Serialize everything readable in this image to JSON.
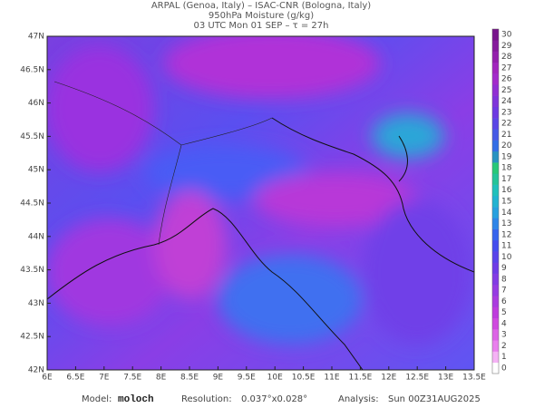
{
  "header": {
    "line1": "ARPAL (Genoa, Italy)  –  ISAC-CNR (Bologna, Italy)",
    "line2": "950hPa Moisture (g/kg)",
    "line3": "03 UTC Mon 01 SEP  –  τ = 27h"
  },
  "map": {
    "lat_labels": [
      "47N",
      "46.5N",
      "46N",
      "45.5N",
      "45N",
      "44.5N",
      "44N",
      "43.5N",
      "43N",
      "42.5N",
      "42N"
    ],
    "lon_labels": [
      "6E",
      "6.5E",
      "7E",
      "7.5E",
      "8E",
      "8.5E",
      "9E",
      "9.5E",
      "10E",
      "10.5E",
      "11E",
      "11.5E",
      "12E",
      "12.5E",
      "13E",
      "13.5E"
    ]
  },
  "colorbar": {
    "labels": [
      0,
      1,
      2,
      3,
      4,
      5,
      6,
      7,
      8,
      9,
      10,
      11,
      12,
      13,
      14,
      15,
      16,
      17,
      18,
      19,
      20,
      21,
      22,
      23,
      24,
      25,
      26,
      27,
      28,
      29,
      30
    ]
  },
  "footer": {
    "model_label": "Model:",
    "model": "moloch",
    "resolution_label": "Resolution:",
    "resolution": "0.037°x0.028°",
    "analysis_label": "Analysis:",
    "analysis": "Sun 00Z31AUG2025"
  }
}
